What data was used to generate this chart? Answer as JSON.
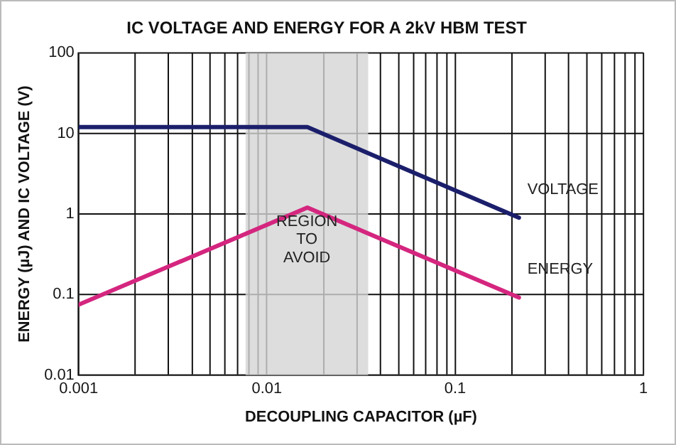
{
  "chart_data": {
    "type": "line",
    "title": "IC VOLTAGE AND ENERGY FOR A 2kV HBM TEST",
    "xlabel": "DECOUPLING CAPACITOR (µF)",
    "ylabel": "ENERGY (µJ) AND IC VOLTAGE (V)",
    "log": "xy",
    "grid": true,
    "legend": false,
    "marker": "none",
    "line_style": "solid",
    "xlim": [
      0.001,
      1
    ],
    "ylim": [
      0.01,
      100
    ],
    "xticks": [
      0.001,
      {
        "value": 0.002,
        "label": null
      },
      {
        "value": 0.003,
        "label": null
      },
      {
        "value": 0.004,
        "label": null
      },
      {
        "value": 0.005,
        "label": null
      },
      {
        "value": 0.006,
        "label": null
      },
      {
        "value": 0.007,
        "label": null
      },
      {
        "value": 0.008,
        "label": null
      },
      {
        "value": 0.009,
        "label": null
      },
      0.01,
      {
        "value": 0.02,
        "label": null
      },
      {
        "value": 0.03,
        "label": null
      },
      {
        "value": 0.04,
        "label": null
      },
      {
        "value": 0.05,
        "label": null
      },
      {
        "value": 0.06,
        "label": null
      },
      {
        "value": 0.07,
        "label": null
      },
      {
        "value": 0.08,
        "label": null
      },
      {
        "value": 0.09,
        "label": null
      },
      0.1,
      {
        "value": 0.2,
        "label": null
      },
      {
        "value": 0.3,
        "label": null
      },
      {
        "value": 0.4,
        "label": null
      },
      {
        "value": 0.5,
        "label": null
      },
      {
        "value": 0.6,
        "label": null
      },
      {
        "value": 0.7,
        "label": null
      },
      {
        "value": 0.8,
        "label": null
      },
      {
        "value": 0.9,
        "label": null
      },
      1
    ],
    "yticks": [
      0.01,
      0.1,
      1,
      10,
      100
    ],
    "bands": [
      {
        "axis": "x",
        "from": 0.0077,
        "to": 0.0345,
        "label": "REGION TO AVOID",
        "color": "#d4d4d4"
      }
    ],
    "series": [
      {
        "name": "VOLTAGE",
        "color": "#1b1f6b",
        "x": [
          0.001,
          0.0164,
          0.218
        ],
        "values": [
          12,
          12,
          0.9
        ]
      },
      {
        "name": "ENERGY",
        "color": "#d4267f",
        "x": [
          0.001,
          0.0164,
          0.218
        ],
        "values": [
          0.075,
          1.2,
          0.092
        ]
      }
    ]
  }
}
